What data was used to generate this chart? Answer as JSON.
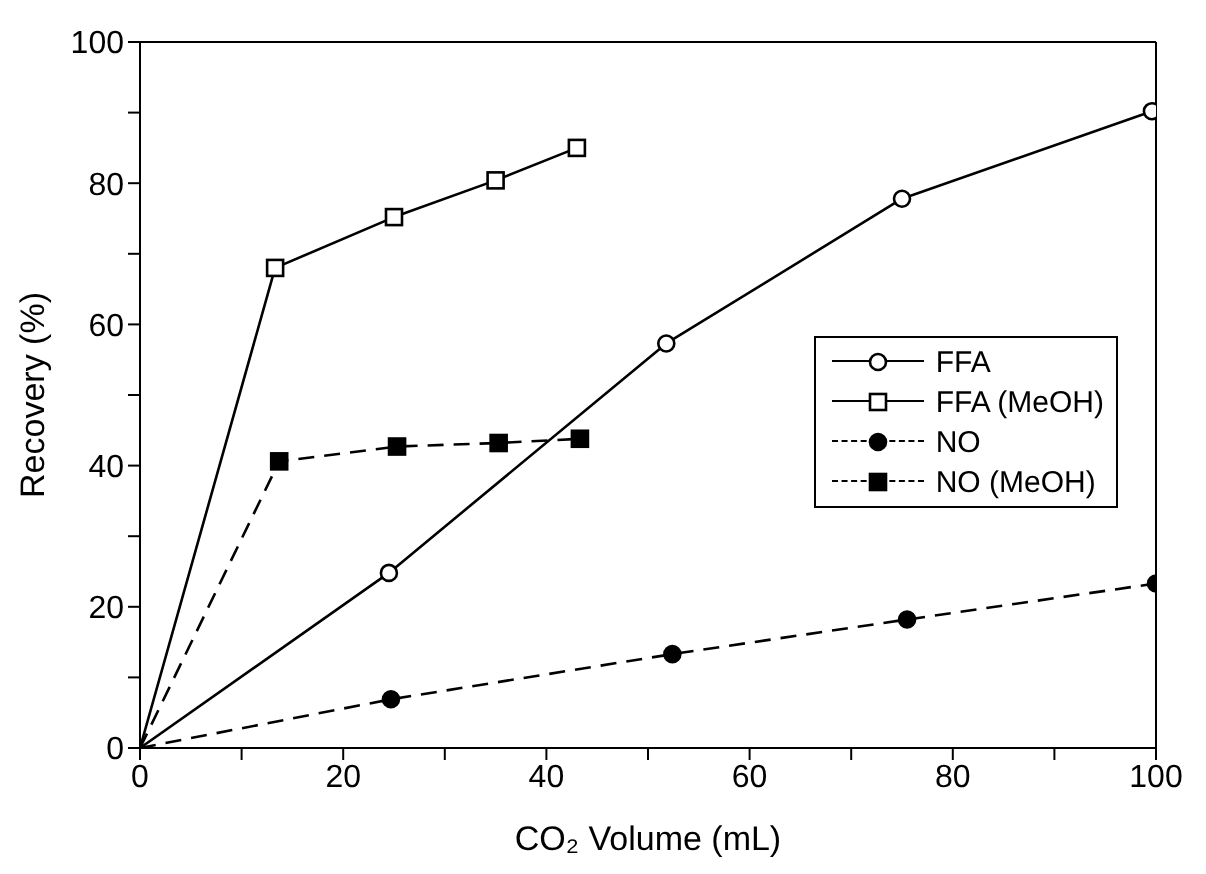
{
  "chart_data": {
    "type": "line",
    "xlabel": "CO₂ Volume (mL)",
    "ylabel": "Recovery (%)",
    "xlim": [
      0,
      100
    ],
    "ylim": [
      0,
      100
    ],
    "xticks": [
      0,
      {
        "value": 10,
        "label": null
      },
      20,
      {
        "value": 30,
        "label": null
      },
      40,
      {
        "value": 50,
        "label": null
      },
      60,
      {
        "value": 70,
        "label": null
      },
      80,
      {
        "value": 90,
        "label": null
      },
      100
    ],
    "yticks": [
      0,
      {
        "value": 10,
        "label": null
      },
      20,
      {
        "value": 30,
        "label": null
      },
      40,
      {
        "value": 50,
        "label": null
      },
      60,
      {
        "value": 70,
        "label": null
      },
      80,
      {
        "value": 90,
        "label": null
      },
      100
    ],
    "grid": false,
    "legend": "right",
    "series": [
      {
        "name": "FFA",
        "color": "#000000",
        "marker": "circle",
        "line_style": "solid",
        "x": [
          0,
          24.5,
          51.8,
          75,
          99.6
        ],
        "values": [
          0,
          24.8,
          57.3,
          77.8,
          90.2
        ]
      },
      {
        "name": "FFA (MeOH)",
        "color": "#000000",
        "marker": "square",
        "line_style": "solid",
        "x": [
          0,
          13.3,
          25,
          35,
          43
        ],
        "values": [
          0,
          68,
          75.2,
          80.4,
          85
        ]
      },
      {
        "name": "NO",
        "color": "#000000",
        "marker": "circle",
        "line_style": "dashed",
        "x": [
          0,
          24.7,
          52.4,
          75.5,
          100
        ],
        "values": [
          0,
          6.9,
          13.3,
          18.2,
          23.3
        ]
      },
      {
        "name": "NO (MeOH)",
        "color": "#000000",
        "marker": "square",
        "line_style": "dashed",
        "x": [
          0,
          13.7,
          25.3,
          35.3,
          43.3
        ],
        "values": [
          0,
          40.6,
          42.7,
          43.2,
          43.8
        ]
      }
    ]
  }
}
